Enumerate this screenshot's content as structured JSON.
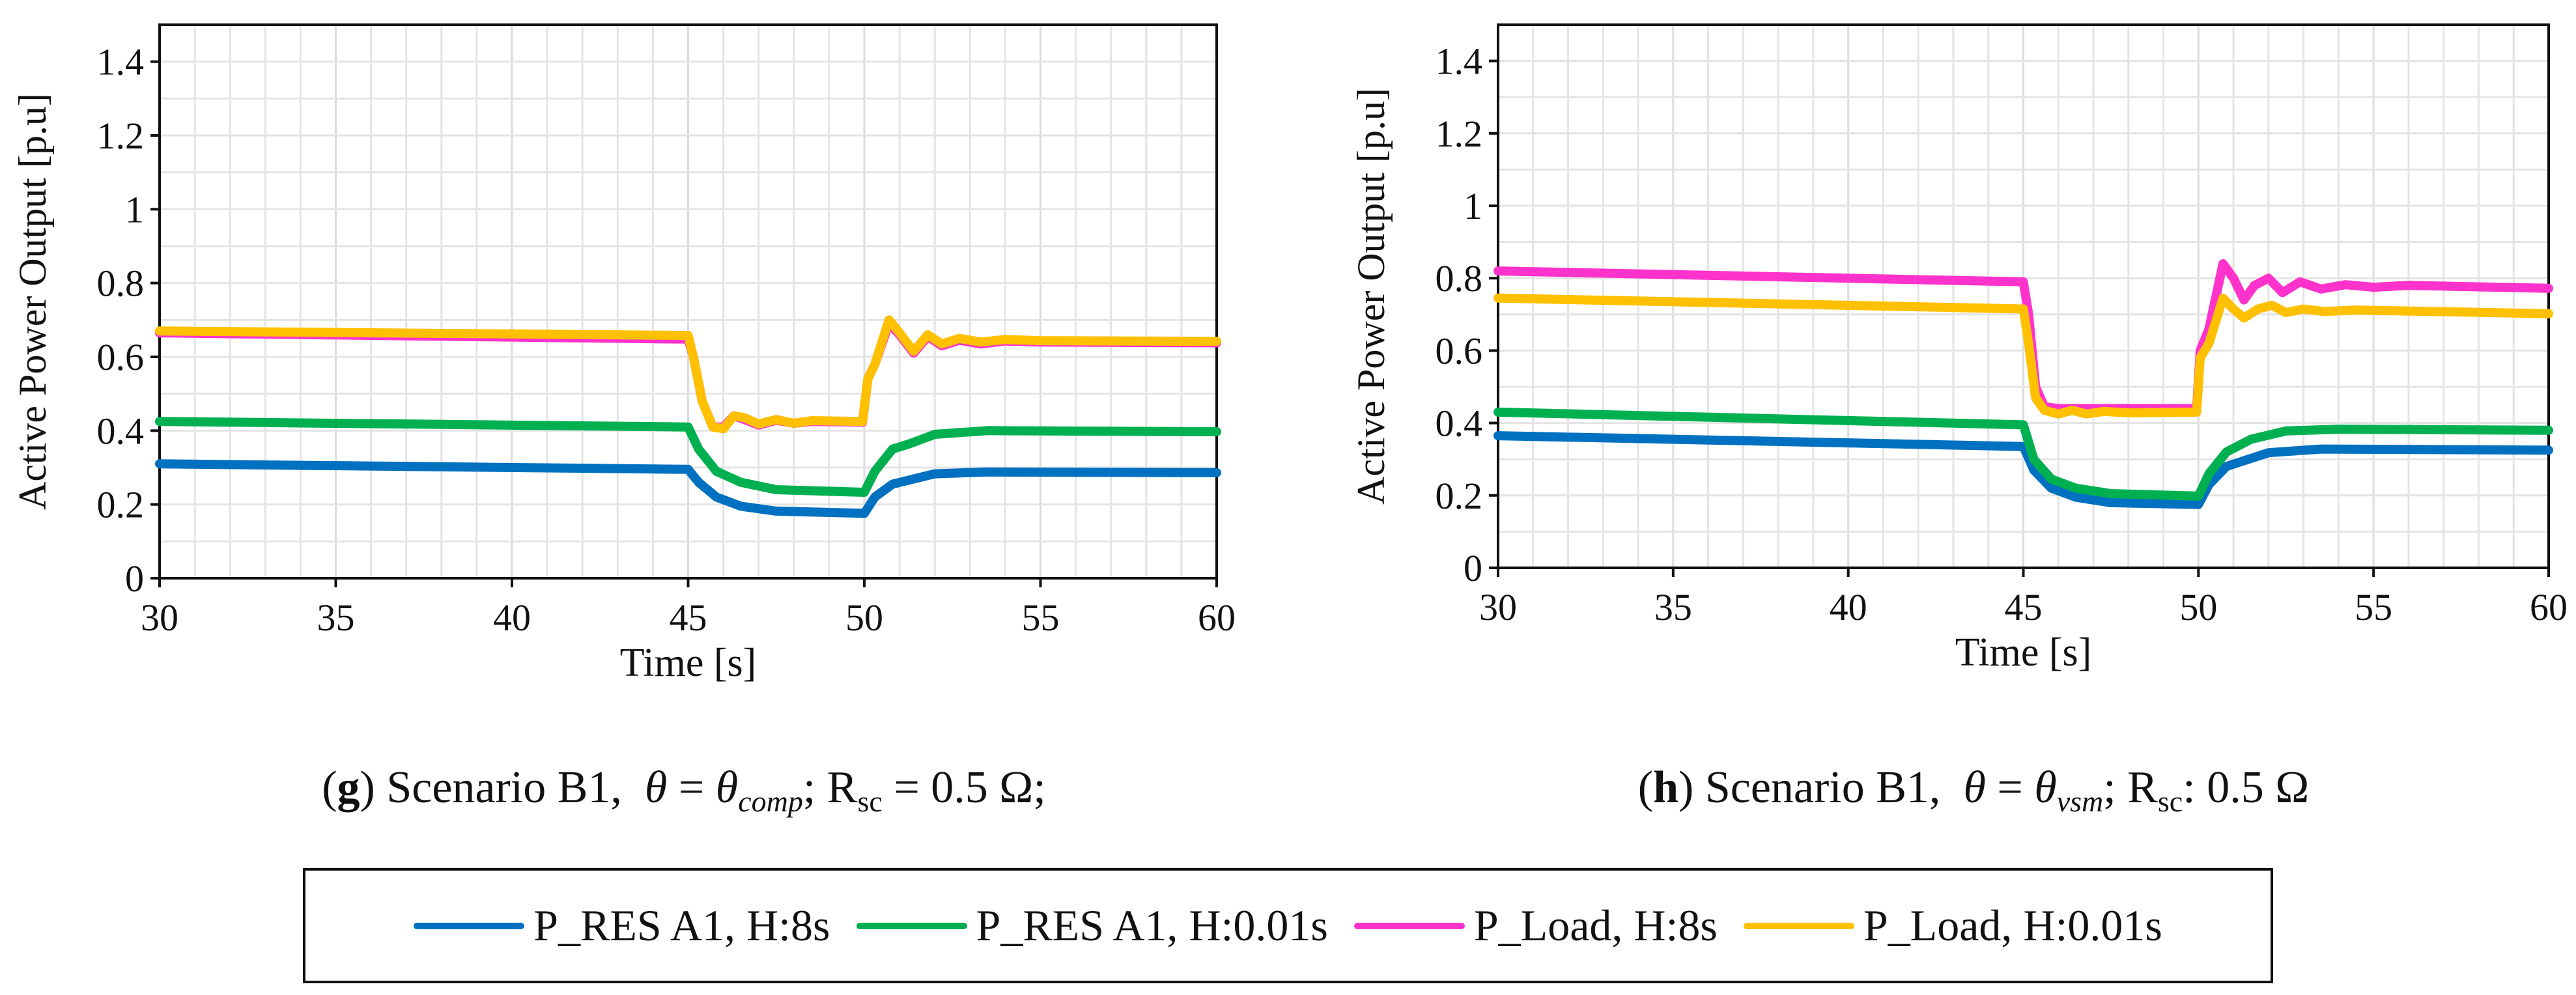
{
  "chart_data": [
    {
      "type": "line",
      "caption": {
        "letter": "g",
        "text": "Scenario B1,",
        "theta": "θ",
        "eq": "=",
        "theta_comp": "θ",
        "comp_sub": "comp",
        "sep": ";",
        "r": "R",
        "r_sub": "sc",
        "r_rel": "=",
        "r_val": "0.5 Ω;"
      },
      "xlabel": "Time [s]",
      "ylabel": "Active Power Output  [p.u]",
      "xlim": [
        30,
        60
      ],
      "ylim": [
        0,
        1.5
      ],
      "x_ticks": [
        "30",
        "35",
        "40",
        "45",
        "50",
        "55",
        "60"
      ],
      "y_ticks": [
        "0",
        "0.2",
        "0.4",
        "0.6",
        "0.8",
        "1",
        "1.2",
        "1.4"
      ],
      "grid": true,
      "series": [
        {
          "name": "P_RES A1, H:8s",
          "color": "#0070C0",
          "points": [
            [
              30,
              0.31
            ],
            [
              45,
              0.295
            ],
            [
              45.3,
              0.26
            ],
            [
              45.8,
              0.22
            ],
            [
              46.5,
              0.195
            ],
            [
              47.5,
              0.182
            ],
            [
              50,
              0.176
            ],
            [
              50.3,
              0.22
            ],
            [
              50.8,
              0.255
            ],
            [
              52,
              0.283
            ],
            [
              53.5,
              0.288
            ],
            [
              60,
              0.286
            ]
          ]
        },
        {
          "name": "P_RES A1, H:0.01s",
          "color": "#00B050",
          "points": [
            [
              30,
              0.425
            ],
            [
              45,
              0.41
            ],
            [
              45.3,
              0.35
            ],
            [
              45.8,
              0.29
            ],
            [
              46.5,
              0.26
            ],
            [
              47.5,
              0.24
            ],
            [
              50,
              0.233
            ],
            [
              50.3,
              0.29
            ],
            [
              50.8,
              0.35
            ],
            [
              51.3,
              0.365
            ],
            [
              52,
              0.39
            ],
            [
              53.5,
              0.4
            ],
            [
              60,
              0.397
            ]
          ]
        },
        {
          "name": "P_Load, H:8s",
          "color": "#FF33CC",
          "points": [
            [
              30,
              0.665
            ],
            [
              45,
              0.648
            ],
            [
              45.15,
              0.6
            ],
            [
              45.4,
              0.48
            ],
            [
              45.7,
              0.41
            ],
            [
              46,
              0.41
            ],
            [
              46.3,
              0.44
            ],
            [
              46.6,
              0.43
            ],
            [
              47,
              0.415
            ],
            [
              47.5,
              0.428
            ],
            [
              48,
              0.42
            ],
            [
              48.5,
              0.425
            ],
            [
              49.95,
              0.423
            ],
            [
              50.1,
              0.54
            ],
            [
              50.3,
              0.58
            ],
            [
              50.7,
              0.69
            ],
            [
              51,
              0.66
            ],
            [
              51.4,
              0.61
            ],
            [
              51.8,
              0.655
            ],
            [
              52.2,
              0.63
            ],
            [
              52.7,
              0.645
            ],
            [
              53.3,
              0.635
            ],
            [
              54,
              0.643
            ],
            [
              55,
              0.64
            ],
            [
              60,
              0.638
            ]
          ]
        },
        {
          "name": "P_Load, H:0.01s",
          "color": "#FFC000",
          "points": [
            [
              30,
              0.67
            ],
            [
              45,
              0.658
            ],
            [
              45.15,
              0.6
            ],
            [
              45.4,
              0.48
            ],
            [
              45.7,
              0.41
            ],
            [
              46,
              0.405
            ],
            [
              46.3,
              0.44
            ],
            [
              46.6,
              0.435
            ],
            [
              47,
              0.418
            ],
            [
              47.5,
              0.43
            ],
            [
              48,
              0.42
            ],
            [
              48.5,
              0.427
            ],
            [
              49.95,
              0.425
            ],
            [
              50.1,
              0.54
            ],
            [
              50.3,
              0.58
            ],
            [
              50.7,
              0.7
            ],
            [
              51,
              0.665
            ],
            [
              51.4,
              0.615
            ],
            [
              51.8,
              0.66
            ],
            [
              52.2,
              0.635
            ],
            [
              52.7,
              0.65
            ],
            [
              53.3,
              0.64
            ],
            [
              54,
              0.647
            ],
            [
              55,
              0.644
            ],
            [
              60,
              0.642
            ]
          ]
        }
      ]
    },
    {
      "type": "line",
      "caption": {
        "letter": "h",
        "text": "Scenario B1,",
        "theta": "θ",
        "eq": "=",
        "theta_comp": "θ",
        "comp_sub": "vsm",
        "sep": ";",
        "r": "R",
        "r_sub": "sc",
        "r_rel": ":",
        "r_val": "0.5 Ω"
      },
      "xlabel": "Time [s]",
      "ylabel": "Active Power Output  [p.u]",
      "xlim": [
        30,
        60
      ],
      "ylim": [
        0,
        1.5
      ],
      "x_ticks": [
        "30",
        "35",
        "40",
        "45",
        "50",
        "55",
        "60"
      ],
      "y_ticks": [
        "0",
        "0.2",
        "0.4",
        "0.6",
        "0.8",
        "1",
        "1.2",
        "1.4"
      ],
      "grid": true,
      "series": [
        {
          "name": "P_RES A1, H:8s",
          "color": "#0070C0",
          "points": [
            [
              30,
              0.365
            ],
            [
              45,
              0.335
            ],
            [
              45.3,
              0.27
            ],
            [
              45.8,
              0.22
            ],
            [
              46.5,
              0.195
            ],
            [
              47.5,
              0.18
            ],
            [
              50,
              0.175
            ],
            [
              50.3,
              0.23
            ],
            [
              50.8,
              0.28
            ],
            [
              52,
              0.318
            ],
            [
              53.5,
              0.328
            ],
            [
              60,
              0.325
            ]
          ]
        },
        {
          "name": "P_RES A1, H:0.01s",
          "color": "#00B050",
          "points": [
            [
              30,
              0.43
            ],
            [
              45,
              0.395
            ],
            [
              45.3,
              0.3
            ],
            [
              45.8,
              0.245
            ],
            [
              46.5,
              0.22
            ],
            [
              47.5,
              0.205
            ],
            [
              50,
              0.198
            ],
            [
              50.3,
              0.26
            ],
            [
              50.8,
              0.32
            ],
            [
              51.5,
              0.355
            ],
            [
              52.5,
              0.378
            ],
            [
              54,
              0.383
            ],
            [
              60,
              0.38
            ]
          ]
        },
        {
          "name": "P_Load, H:8s",
          "color": "#FF33CC",
          "points": [
            [
              30,
              0.82
            ],
            [
              45,
              0.79
            ],
            [
              45.15,
              0.7
            ],
            [
              45.35,
              0.5
            ],
            [
              45.6,
              0.445
            ],
            [
              46,
              0.44
            ],
            [
              49.95,
              0.44
            ],
            [
              50.05,
              0.6
            ],
            [
              50.3,
              0.66
            ],
            [
              50.7,
              0.84
            ],
            [
              51,
              0.8
            ],
            [
              51.3,
              0.74
            ],
            [
              51.6,
              0.78
            ],
            [
              52,
              0.8
            ],
            [
              52.4,
              0.76
            ],
            [
              52.9,
              0.79
            ],
            [
              53.5,
              0.77
            ],
            [
              54.2,
              0.782
            ],
            [
              55,
              0.775
            ],
            [
              56,
              0.78
            ],
            [
              60,
              0.772
            ]
          ]
        },
        {
          "name": "P_Load, H:0.01s",
          "color": "#FFC000",
          "points": [
            [
              30,
              0.745
            ],
            [
              45,
              0.715
            ],
            [
              45.15,
              0.62
            ],
            [
              45.35,
              0.47
            ],
            [
              45.6,
              0.435
            ],
            [
              46,
              0.425
            ],
            [
              46.4,
              0.435
            ],
            [
              46.8,
              0.425
            ],
            [
              47.3,
              0.432
            ],
            [
              48,
              0.428
            ],
            [
              49.95,
              0.43
            ],
            [
              50.05,
              0.58
            ],
            [
              50.3,
              0.62
            ],
            [
              50.7,
              0.745
            ],
            [
              51,
              0.715
            ],
            [
              51.3,
              0.69
            ],
            [
              51.7,
              0.715
            ],
            [
              52.1,
              0.725
            ],
            [
              52.5,
              0.705
            ],
            [
              53,
              0.715
            ],
            [
              53.6,
              0.708
            ],
            [
              54.5,
              0.712
            ],
            [
              60,
              0.702
            ]
          ]
        }
      ]
    }
  ],
  "legend": [
    {
      "label": "P_RES A1, H:8s",
      "color": "#0070C0"
    },
    {
      "label": "P_RES A1, H:0.01s",
      "color": "#00B050"
    },
    {
      "label": "P_Load, H:8s",
      "color": "#FF33CC"
    },
    {
      "label": "P_Load, H:0.01s",
      "color": "#FFC000"
    }
  ]
}
